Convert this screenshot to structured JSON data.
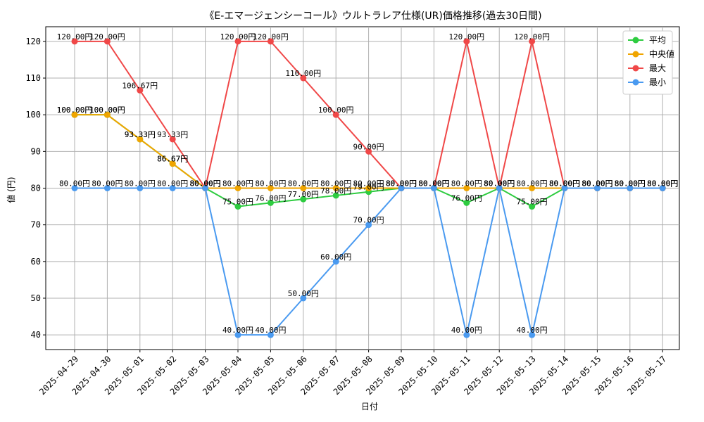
{
  "chart_data": {
    "type": "line",
    "title": "《E-エマージェンシーコール》ウルトラレア仕様(UR)価格推移(過去30日間)",
    "xlabel": "日付",
    "ylabel": "値 (円)",
    "ylim": [
      36,
      124
    ],
    "yticks": [
      40,
      50,
      60,
      70,
      80,
      90,
      100,
      110,
      120
    ],
    "grid": true,
    "legend_position": "top-right",
    "value_suffix": "円",
    "x": [
      "2025-04-29",
      "2025-04-30",
      "2025-05-01",
      "2025-05-02",
      "2025-05-03",
      "2025-05-04",
      "2025-05-05",
      "2025-05-06",
      "2025-05-07",
      "2025-05-08",
      "2025-05-09",
      "2025-05-10",
      "2025-05-11",
      "2025-05-12",
      "2025-05-13",
      "2025-05-14",
      "2025-05-15",
      "2025-05-16",
      "2025-05-17"
    ],
    "series": [
      {
        "name": "平均",
        "color": "#2ecc40",
        "values": [
          100,
          100,
          93.33,
          86.67,
          80,
          75,
          76,
          77,
          78,
          79,
          80,
          80,
          76,
          80,
          75,
          80,
          80,
          80,
          80
        ]
      },
      {
        "name": "中央値",
        "color": "#f0a500",
        "values": [
          100,
          100,
          93.33,
          86.67,
          80,
          80,
          80,
          80,
          80,
          80,
          80,
          80,
          80,
          80,
          80,
          80,
          80,
          80,
          80
        ]
      },
      {
        "name": "最大",
        "color": "#f04848",
        "values": [
          120,
          120,
          106.67,
          93.33,
          80,
          120,
          120,
          110,
          100,
          90,
          80,
          80,
          120,
          80,
          120,
          80,
          80,
          80,
          80
        ]
      },
      {
        "name": "最小",
        "color": "#4a9af0",
        "values": [
          80,
          80,
          80,
          80,
          80,
          40,
          40,
          50,
          60,
          70,
          80,
          80,
          40,
          80,
          40,
          80,
          80,
          80,
          80
        ]
      }
    ]
  }
}
